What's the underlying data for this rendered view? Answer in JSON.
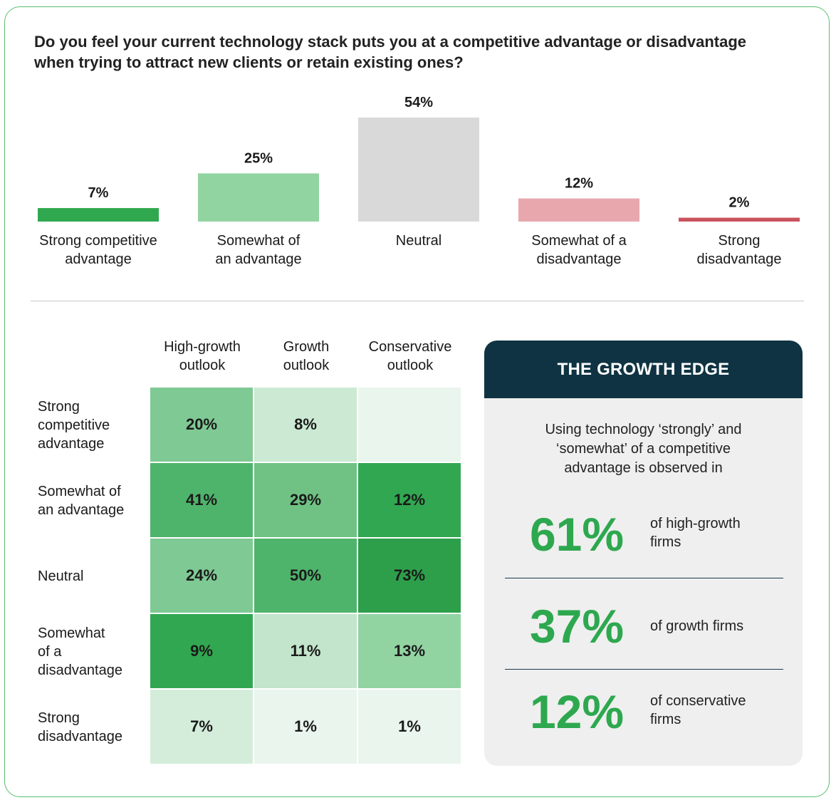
{
  "question": "Do you feel your current technology stack puts you at a competitive advantage or disadvantage when trying to attract new clients or retain existing ones?",
  "chart_data": [
    {
      "type": "bar",
      "title": "Do you feel your current technology stack puts you at a competitive advantage or disadvantage when trying to attract new clients or retain existing ones?",
      "categories": [
        "Strong competitive advantage",
        "Somewhat of an advantage",
        "Neutral",
        "Somewhat of a disadvantage",
        "Strong disadvantage"
      ],
      "label_lines": [
        [
          "Strong competitive",
          "advantage"
        ],
        [
          "Somewhat of",
          "an advantage"
        ],
        [
          "Neutral"
        ],
        [
          "Somewhat of a",
          "disadvantage"
        ],
        [
          "Strong",
          "disadvantage"
        ]
      ],
      "values": [
        7,
        25,
        54,
        12,
        2
      ],
      "value_labels": [
        "7%",
        "25%",
        "54%",
        "12%",
        "2%"
      ],
      "colors": [
        "#2fa84f",
        "#92d3a2",
        "#d9d9d9",
        "#e8a7ad",
        "#c9535d"
      ],
      "ylim": [
        0,
        54
      ],
      "grid": false,
      "legend": "none"
    },
    {
      "type": "heatmap",
      "columns": [
        "High-growth outlook",
        "Growth outlook",
        "Conservative outlook"
      ],
      "column_lines": [
        [
          "High-growth",
          "outlook"
        ],
        [
          "Growth",
          "outlook"
        ],
        [
          "Conservative",
          "outlook"
        ]
      ],
      "rows": [
        "Strong competitive advantage",
        "Somewhat of an advantage",
        "Neutral",
        "Somewhat of a disadvantage",
        "Strong disadvantage"
      ],
      "row_lines": [
        [
          "Strong",
          "competitive",
          "advantage"
        ],
        [
          "Somewhat of",
          "an advantage"
        ],
        [
          "Neutral"
        ],
        [
          "Somewhat",
          "of a",
          "disadvantage"
        ],
        [
          "Strong",
          "disadvantage"
        ]
      ],
      "values": [
        [
          20,
          8,
          0
        ],
        [
          41,
          29,
          12
        ],
        [
          24,
          50,
          73
        ],
        [
          9,
          11,
          13
        ],
        [
          7,
          1,
          1
        ]
      ],
      "value_labels": [
        [
          "20%",
          "8%",
          ""
        ],
        [
          "41%",
          "29%",
          "12%"
        ],
        [
          "24%",
          "50%",
          "73%"
        ],
        [
          "9%",
          "11%",
          "13%"
        ],
        [
          "7%",
          "1%",
          "1%"
        ]
      ],
      "cell_colors": [
        [
          "#7fc994",
          "#cbe9d3",
          "#eaf5ed"
        ],
        [
          "#4fb46b",
          "#6fc283",
          "#31a751"
        ],
        [
          "#7fc994",
          "#4fb46b",
          "#2d9f4a"
        ],
        [
          "#31a751",
          "#c2e5cb",
          "#92d3a2"
        ],
        [
          "#d4edda",
          "#eaf5ed",
          "#eaf5ed"
        ]
      ]
    }
  ],
  "growth_edge": {
    "title": "THE GROWTH EDGE",
    "intro_lines": [
      "Using technology ‘strongly’ and",
      "‘somewhat’ of a competitive",
      "advantage is observed in"
    ],
    "stats": [
      {
        "value": "61%",
        "desc_lines": [
          "of high-growth",
          "firms"
        ]
      },
      {
        "value": "37%",
        "desc_lines": [
          "of growth firms"
        ]
      },
      {
        "value": "12%",
        "desc_lines": [
          "of conservative",
          "firms"
        ]
      }
    ],
    "accent": "#2ea84f",
    "header_color": "#0f3342"
  }
}
